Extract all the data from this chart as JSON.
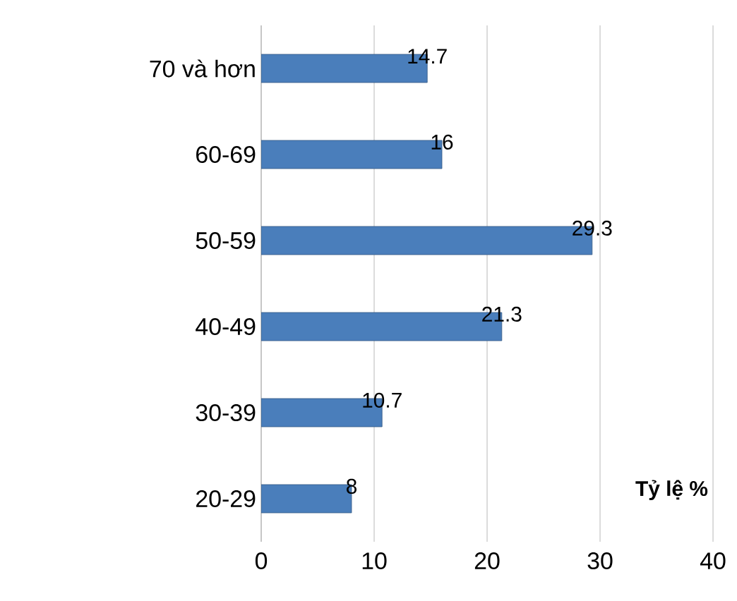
{
  "chart_data": {
    "type": "bar",
    "orientation": "horizontal",
    "xlabel": "Tỷ lệ %",
    "categories": [
      "70 và hơn",
      "60-69",
      "50-59",
      "40-49",
      "30-39",
      "20-29"
    ],
    "values": [
      14.7,
      16,
      29.3,
      21.3,
      10.7,
      8
    ],
    "color": "#4a7ebb",
    "xlim": [
      0,
      40
    ],
    "xticks": [
      0,
      10,
      20,
      30,
      40
    ],
    "grid": "x",
    "data_labels": true
  }
}
